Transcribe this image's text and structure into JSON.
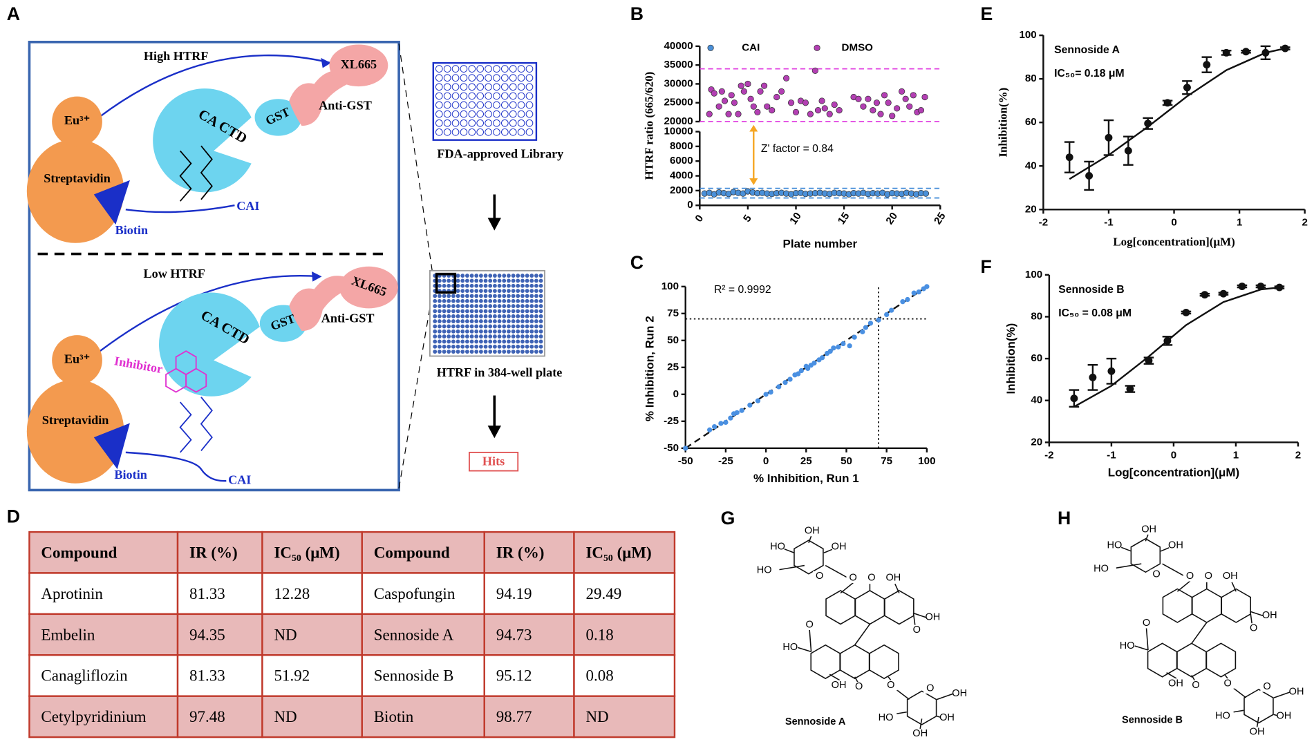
{
  "panels": [
    "A",
    "B",
    "C",
    "D",
    "E",
    "F",
    "G",
    "H"
  ],
  "diagram": {
    "top": {
      "title": "High HTRF",
      "eu": "Eu³⁺",
      "streptavidin": "Streptavidin",
      "biotin": "Biotin",
      "ca_ctd": "CA CTD",
      "gst": "GST",
      "anti_gst": "Anti-GST",
      "xl665": "XL665",
      "cai": "CAI"
    },
    "bottom": {
      "title": "Low HTRF",
      "eu": "Eu³⁺",
      "streptavidin": "Streptavidin",
      "biotin": "Biotin",
      "ca_ctd": "CA CTD",
      "gst": "GST",
      "anti_gst": "Anti-GST",
      "xl665": "XL665",
      "inhibitor": "Inhibitor",
      "cai": "CAI"
    },
    "workflow": {
      "library": "FDA-approved Library",
      "plate": "HTRF in 384-well plate",
      "hits": "Hits"
    }
  },
  "table": {
    "header": [
      "Compound",
      "IR (%)",
      "IC₅₀ (μM)",
      "Compound",
      "IR (%)",
      "IC₅₀ (μM)"
    ],
    "rows": [
      [
        "Aprotinin",
        "81.33",
        "12.28",
        "Caspofungin",
        "94.19",
        "29.49"
      ],
      [
        "Embelin",
        "94.35",
        "ND",
        "Sennoside A",
        "94.73",
        "0.18"
      ],
      [
        "Canagliflozin",
        "81.33",
        "51.92",
        "Sennoside B",
        "95.12",
        "0.08"
      ],
      [
        "Cetylpyridinium",
        "97.48",
        "ND",
        "Biotin",
        "98.77",
        "ND"
      ]
    ]
  },
  "structures": [
    {
      "name": "Sennoside A",
      "labels": [
        "OH",
        "HO",
        "OH",
        "HO",
        "O",
        "O",
        "O",
        "OH",
        "OH",
        "O",
        "HO",
        "O",
        "O",
        "OH",
        "O",
        "O",
        "OH",
        "HO",
        "OH",
        "OH"
      ]
    },
    {
      "name": "Sennoside B",
      "labels": [
        "OH",
        "HO",
        "OH",
        "HO",
        "O",
        "O",
        "O",
        "OH",
        "OH",
        "O",
        "HO",
        "O",
        "O",
        "OH",
        "O",
        "O",
        "OH",
        "HO",
        "OH",
        "OH"
      ]
    }
  ],
  "chart_data": [
    {
      "type": "scatter",
      "xlabel": "Plate number",
      "ylabel": "HTRF ratio (665/620)",
      "xlim": [
        0,
        25
      ],
      "xticks": [
        0,
        5,
        10,
        15,
        20,
        25
      ],
      "ylim": [
        0,
        10000
      ],
      "yticks": [
        0,
        2000,
        4000,
        6000,
        8000,
        10000
      ],
      "y_upper_lim": [
        20000,
        40000
      ],
      "y_upper_ticks": [
        20000,
        25000,
        30000,
        35000,
        40000
      ],
      "legend": "top",
      "series": [
        {
          "name": "CAI",
          "color": "#4a90d9",
          "x": [
            0.5,
            1,
            1.5,
            2,
            2.5,
            3,
            3.5,
            4,
            4.5,
            5,
            5.5,
            6,
            6.5,
            7,
            7.5,
            8,
            8.5,
            9,
            9.5,
            10,
            10.5,
            11,
            11.5,
            12,
            12.5,
            13,
            13.5,
            14,
            14.5,
            15,
            15.5,
            16,
            16.5,
            17,
            17.5,
            18,
            18.5,
            19,
            19.5,
            20,
            20.5,
            21,
            21.5,
            22,
            22.5,
            23,
            23.5
          ],
          "values": [
            1600,
            1700,
            1500,
            1750,
            1650,
            1550,
            1800,
            1700,
            1600,
            1900,
            1750,
            1650,
            1700,
            1600,
            1550,
            1650,
            1700,
            1600,
            1500,
            1650,
            1700,
            1550,
            1600,
            1650,
            1700,
            1600,
            1550,
            1700,
            1650,
            1600,
            1500,
            1650,
            1600,
            1700,
            1550,
            1650,
            1600,
            1700,
            1500,
            1650,
            1600,
            1550,
            1700,
            1600,
            1500,
            1650,
            1600
          ]
        },
        {
          "name": "DMSO",
          "color": "#b33fb3",
          "x": [
            1,
            1.2,
            1.5,
            2,
            2.3,
            2.6,
            3,
            3.3,
            3.6,
            4,
            4.3,
            4.6,
            5,
            5.3,
            5.6,
            6,
            6.3,
            6.7,
            7,
            7.5,
            8,
            8.5,
            9,
            9.5,
            10,
            10.5,
            11,
            11.5,
            12,
            12.3,
            12.7,
            13,
            13.5,
            14,
            14.5,
            16,
            16.5,
            17,
            17.5,
            18,
            18.4,
            18.8,
            19.2,
            19.6,
            20,
            20.5,
            21,
            21.4,
            21.8,
            22.2,
            22.6,
            23,
            23.4
          ],
          "values": [
            22000,
            28500,
            27500,
            24000,
            28000,
            25500,
            22000,
            27000,
            25000,
            22000,
            29500,
            28000,
            30000,
            26000,
            24000,
            22500,
            28000,
            29500,
            24000,
            23000,
            26500,
            28000,
            31500,
            25000,
            22500,
            25500,
            25000,
            22000,
            33500,
            23000,
            25500,
            23500,
            22000,
            24500,
            23000,
            26500,
            26000,
            24000,
            26000,
            23000,
            25000,
            22000,
            27000,
            25000,
            21500,
            23500,
            28000,
            26000,
            24000,
            27000,
            22500,
            23000,
            26500
          ]
        }
      ],
      "reference_lines": [
        {
          "value": 34000,
          "color": "#e040e0"
        },
        {
          "value": 20000,
          "color": "#e040e0"
        },
        {
          "value": 2300,
          "color": "#4a90d9"
        },
        {
          "value": 1000,
          "color": "#4a90d9"
        }
      ],
      "annotation": "Z' factor = 0.84"
    },
    {
      "type": "scatter",
      "xlabel": "% Inhibition, Run 1",
      "ylabel": "% Inhibition, Run 2",
      "xlim": [
        -50,
        100
      ],
      "xticks": [
        -50,
        -25,
        0,
        25,
        50,
        75,
        100
      ],
      "ylim": [
        -50,
        100
      ],
      "yticks": [
        -50,
        -25,
        0,
        25,
        50,
        75,
        100
      ],
      "series": [
        {
          "color": "#4a90e2",
          "x": [
            -50,
            -35,
            -32,
            -28,
            -25,
            -22,
            -20,
            -18,
            -15,
            -10,
            -5,
            0,
            3,
            8,
            12,
            15,
            18,
            20,
            22,
            25,
            26,
            28,
            30,
            33,
            35,
            38,
            40,
            42,
            45,
            48,
            52,
            55,
            60,
            62,
            65,
            70,
            75,
            78,
            85,
            88,
            92,
            95,
            98,
            100
          ],
          "values": [
            -50,
            -33,
            -30,
            -27,
            -26,
            -22,
            -18,
            -17,
            -15,
            -10,
            -6,
            0,
            2,
            7,
            11,
            14,
            18,
            19,
            22,
            26,
            24,
            27,
            29,
            32,
            34,
            38,
            40,
            43,
            44,
            47,
            45,
            53,
            58,
            62,
            66,
            69,
            74,
            78,
            86,
            88,
            94,
            95,
            98,
            100
          ]
        }
      ],
      "fit": {
        "x": [
          -50,
          100
        ],
        "values": [
          -50,
          100
        ]
      },
      "reference_lines": [
        {
          "axis": "x",
          "value": 70
        },
        {
          "axis": "y",
          "value": 70
        }
      ],
      "annotation": "R² = 0.9992"
    },
    {
      "type": "errorbar",
      "xlabel": "Log[concentration](μM)",
      "ylabel": "Inhibition(%)",
      "xlim": [
        -2,
        2
      ],
      "xticks": [
        -2,
        -1,
        0,
        1,
        2
      ],
      "ylim": [
        20,
        100
      ],
      "yticks": [
        20,
        40,
        60,
        80,
        100
      ],
      "annotation": [
        "Sennoside A",
        "IC₅₀= 0.18 μM"
      ],
      "color": "#111111",
      "x": [
        -1.6,
        -1.3,
        -1.0,
        -0.7,
        -0.4,
        -0.1,
        0.2,
        0.5,
        0.8,
        1.1,
        1.4,
        1.7
      ],
      "values": [
        44,
        35.5,
        53,
        47,
        59.5,
        69,
        76,
        86.5,
        92,
        92.5,
        92,
        94
      ],
      "errors": [
        7,
        6.5,
        8,
        6.5,
        2.5,
        1,
        3,
        3.5,
        1,
        0.5,
        3,
        0.5
      ],
      "fit_curve": {
        "x": [
          -1.6,
          -1.0,
          -0.4,
          0.2,
          0.8,
          1.4,
          1.7
        ],
        "values": [
          34,
          45,
          58,
          72,
          84,
          92,
          94
        ]
      }
    },
    {
      "type": "errorbar",
      "xlabel": "Log[concentration](μM)",
      "ylabel": "Inhibition(%)",
      "xlim": [
        -2,
        2
      ],
      "xticks": [
        -2,
        -1,
        0,
        1,
        2
      ],
      "ylim": [
        20,
        100
      ],
      "yticks": [
        20,
        40,
        60,
        80,
        100
      ],
      "annotation": [
        "Sennoside B",
        "IC₅₀ = 0.08 μM"
      ],
      "color": "#111111",
      "x": [
        -1.6,
        -1.3,
        -1.0,
        -0.7,
        -0.4,
        -0.1,
        0.2,
        0.5,
        0.8,
        1.1,
        1.4,
        1.7
      ],
      "values": [
        41,
        51,
        54,
        45.5,
        59,
        68.5,
        82,
        90.5,
        91,
        94.5,
        94.5,
        94
      ],
      "errors": [
        4,
        6,
        6,
        1.5,
        1.5,
        2,
        0.5,
        0.5,
        0.5,
        0.5,
        0.5,
        0.5
      ],
      "fit_curve": {
        "x": [
          -1.6,
          -1.0,
          -0.4,
          0.2,
          0.8,
          1.4,
          1.7
        ],
        "values": [
          37,
          47,
          61,
          76,
          87,
          93,
          94
        ]
      }
    }
  ]
}
